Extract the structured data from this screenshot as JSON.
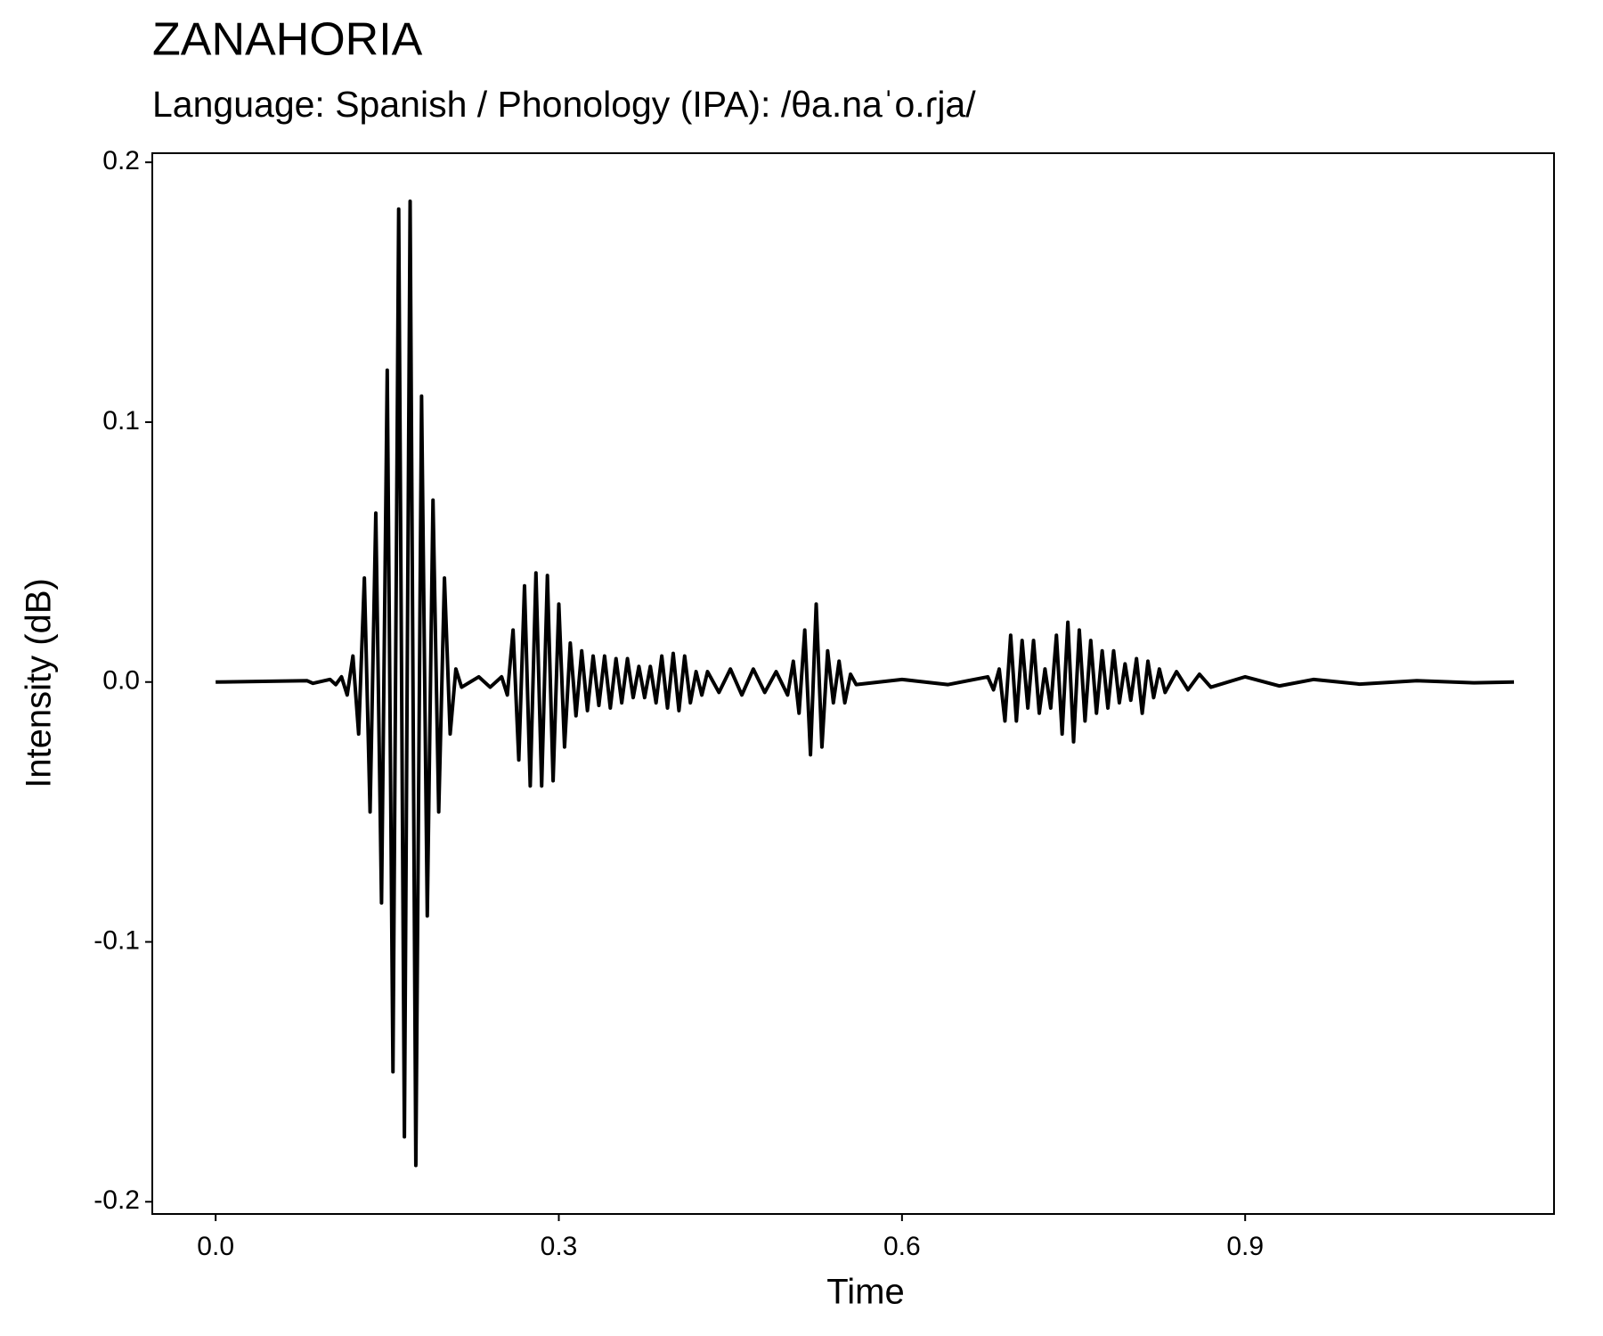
{
  "chart_data": {
    "type": "line",
    "title": "ZANAHORIA",
    "subtitle": "Language: Spanish / Phonology (IPA): /θa.naˈo.ɾja/",
    "x_label": "Time",
    "y_label": "Intensity (dB)",
    "color": "#000000",
    "grid": false,
    "xlim": [
      -0.0554,
      1.17
    ],
    "ylim": [
      -0.2047,
      0.2035
    ],
    "xticks": [
      {
        "value": 0,
        "label": "0.0"
      },
      0.3,
      0.6,
      0.9
    ],
    "yticks": [
      -0.2,
      -0.1,
      {
        "value": 0,
        "label": "0.0"
      },
      0.1,
      0.2
    ],
    "x": [
      0,
      0.08,
      0.085,
      0.1,
      0.105,
      0.11,
      0.115,
      0.12,
      0.125,
      0.13,
      0.135,
      0.14,
      0.145,
      0.15,
      0.155,
      0.16,
      0.165,
      0.17,
      0.175,
      0.18,
      0.185,
      0.19,
      0.195,
      0.2,
      0.205,
      0.21,
      0.215,
      0.23,
      0.24,
      0.25,
      0.255,
      0.26,
      0.265,
      0.27,
      0.275,
      0.28,
      0.285,
      0.29,
      0.295,
      0.3,
      0.305,
      0.31,
      0.315,
      0.32,
      0.325,
      0.33,
      0.335,
      0.34,
      0.345,
      0.35,
      0.355,
      0.36,
      0.365,
      0.37,
      0.375,
      0.38,
      0.385,
      0.39,
      0.395,
      0.4,
      0.405,
      0.41,
      0.415,
      0.42,
      0.425,
      0.43,
      0.44,
      0.45,
      0.46,
      0.47,
      0.48,
      0.49,
      0.5,
      0.505,
      0.51,
      0.515,
      0.52,
      0.525,
      0.53,
      0.535,
      0.54,
      0.545,
      0.55,
      0.555,
      0.56,
      0.6,
      0.64,
      0.675,
      0.68,
      0.685,
      0.69,
      0.695,
      0.7,
      0.705,
      0.71,
      0.715,
      0.72,
      0.725,
      0.73,
      0.735,
      0.74,
      0.745,
      0.75,
      0.755,
      0.76,
      0.765,
      0.77,
      0.775,
      0.78,
      0.785,
      0.79,
      0.795,
      0.8,
      0.805,
      0.81,
      0.815,
      0.82,
      0.825,
      0.83,
      0.84,
      0.85,
      0.86,
      0.87,
      0.9,
      0.93,
      0.96,
      1.0,
      1.05,
      1.1,
      1.135
    ],
    "values": [
      0,
      0.0005,
      -0.0005,
      0.001,
      -0.001,
      0.002,
      -0.005,
      0.01,
      -0.02,
      0.04,
      -0.05,
      0.065,
      -0.085,
      0.12,
      -0.15,
      0.182,
      -0.175,
      0.185,
      -0.186,
      0.11,
      -0.09,
      0.07,
      -0.05,
      0.04,
      -0.02,
      0.005,
      -0.002,
      0.002,
      -0.002,
      0.002,
      -0.005,
      0.02,
      -0.03,
      0.037,
      -0.04,
      0.042,
      -0.04,
      0.041,
      -0.038,
      0.03,
      -0.025,
      0.015,
      -0.013,
      0.012,
      -0.011,
      0.01,
      -0.009,
      0.01,
      -0.01,
      0.009,
      -0.008,
      0.009,
      -0.006,
      0.006,
      -0.006,
      0.006,
      -0.008,
      0.01,
      -0.01,
      0.011,
      -0.011,
      0.01,
      -0.008,
      0.004,
      -0.005,
      0.004,
      -0.004,
      0.005,
      -0.005,
      0.005,
      -0.004,
      0.004,
      -0.005,
      0.008,
      -0.012,
      0.02,
      -0.028,
      0.03,
      -0.025,
      0.012,
      -0.008,
      0.008,
      -0.008,
      0.003,
      -0.001,
      0.001,
      -0.001,
      0.002,
      -0.003,
      0.005,
      -0.015,
      0.018,
      -0.015,
      0.016,
      -0.01,
      0.016,
      -0.012,
      0.005,
      -0.01,
      0.018,
      -0.02,
      0.023,
      -0.023,
      0.02,
      -0.015,
      0.016,
      -0.012,
      0.012,
      -0.01,
      0.012,
      -0.008,
      0.007,
      -0.007,
      0.009,
      -0.012,
      0.008,
      -0.006,
      0.005,
      -0.004,
      0.004,
      -0.003,
      0.003,
      -0.002,
      0.002,
      -0.0015,
      0.001,
      -0.0008,
      0.0005,
      -0.0003,
      0
    ]
  }
}
